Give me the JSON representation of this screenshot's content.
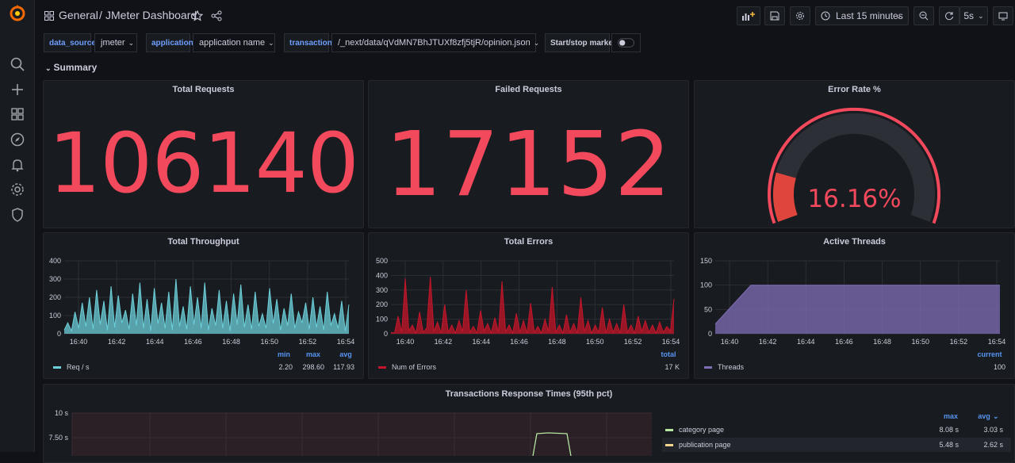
{
  "header": {
    "breadcrumb_root": "General",
    "separator": "/",
    "dashboard_title": "JMeter Dashboard",
    "time_range": "Last 15 minutes",
    "refresh_interval": "5s"
  },
  "variables": {
    "data_source": {
      "label": "data_source",
      "value": "jmeter"
    },
    "application": {
      "label": "application",
      "value": "application name"
    },
    "transaction": {
      "label": "transaction",
      "value": "/_next/data/qVdMN7BhJTUXf8zfj5tjR/opinion.json"
    },
    "marker": {
      "label": "Start/stop marker"
    }
  },
  "row": {
    "title": "Summary"
  },
  "panels": {
    "total_requests": {
      "title": "Total Requests",
      "value": "106140"
    },
    "failed_requests": {
      "title": "Failed Requests",
      "value": "17152"
    },
    "error_rate": {
      "title": "Error Rate %",
      "value": "16.16%",
      "fraction": 0.1616
    },
    "throughput": {
      "title": "Total Throughput",
      "legend_headers": [
        "min",
        "max",
        "avg"
      ],
      "series_name": "Req / s",
      "stats": [
        "2.20",
        "298.60",
        "117.93"
      ]
    },
    "errors": {
      "title": "Total Errors",
      "legend_headers": [
        "total"
      ],
      "series_name": "Num of Errors",
      "stats": [
        "17 K"
      ]
    },
    "threads": {
      "title": "Active Threads",
      "legend_headers": [
        "current"
      ],
      "series_name": "Threads",
      "stats": [
        "100"
      ]
    },
    "response_times": {
      "title": "Transactions Response Times (95th pct)",
      "legend_headers": [
        "max",
        "avg"
      ],
      "rows": [
        {
          "name": "category page",
          "max": "8.08 s",
          "avg": "3.03 s"
        },
        {
          "name": "publication page",
          "max": "5.48 s",
          "avg": "2.62 s"
        }
      ],
      "y_ticks": [
        "10 s",
        "7.50 s"
      ]
    }
  },
  "colors": {
    "red": "#f2495c",
    "teal": "#6ccfd9",
    "dark_red": "#c4162a",
    "purple": "#806eb7",
    "green": "#b5e5a0",
    "yellow": "#f7d48c",
    "link_blue": "#5794f2"
  },
  "chart_data": [
    {
      "type": "area",
      "title": "Total Throughput",
      "x_ticks": [
        "16:40",
        "16:42",
        "16:44",
        "16:46",
        "16:48",
        "16:50",
        "16:52",
        "16:54"
      ],
      "y_ticks": [
        0,
        100,
        200,
        300,
        400
      ],
      "ylim": [
        0,
        400
      ],
      "series": [
        {
          "name": "Req / s",
          "color": "#6ccfd9",
          "values": [
            20,
            60,
            15,
            120,
            30,
            170,
            40,
            200,
            25,
            240,
            50,
            180,
            20,
            260,
            35,
            210,
            60,
            130,
            25,
            220,
            45,
            280,
            30,
            190,
            15,
            250,
            55,
            170,
            30,
            230,
            20,
            300,
            40,
            150,
            25,
            260,
            50,
            200,
            30,
            280,
            20,
            140,
            45,
            240,
            30,
            180,
            15,
            220,
            50,
            270,
            35,
            160,
            25,
            230,
            40,
            110,
            30,
            250,
            55,
            190,
            20,
            140,
            45,
            220,
            30,
            120,
            60,
            170,
            25,
            200,
            35,
            150,
            20,
            230,
            45,
            110,
            30,
            180,
            15,
            160
          ]
        }
      ]
    },
    {
      "type": "area",
      "title": "Total Errors",
      "x_ticks": [
        "16:40",
        "16:42",
        "16:44",
        "16:46",
        "16:48",
        "16:50",
        "16:52",
        "16:54"
      ],
      "y_ticks": [
        0,
        100,
        200,
        300,
        400,
        500
      ],
      "ylim": [
        0,
        500
      ],
      "series": [
        {
          "name": "Num of Errors",
          "color": "#c4162a",
          "values": [
            10,
            5,
            120,
            10,
            380,
            20,
            60,
            5,
            150,
            10,
            40,
            390,
            15,
            80,
            5,
            200,
            10,
            60,
            5,
            90,
            15,
            300,
            10,
            50,
            5,
            160,
            20,
            70,
            5,
            110,
            10,
            360,
            15,
            60,
            5,
            140,
            10,
            90,
            5,
            210,
            10,
            50,
            5,
            100,
            15,
            320,
            10,
            60,
            5,
            130,
            10,
            70,
            5,
            250,
            15,
            90,
            5,
            60,
            10,
            180,
            5,
            100,
            10,
            70,
            5,
            200,
            10,
            60,
            5,
            120,
            15,
            90,
            10,
            60,
            5,
            80,
            10,
            50,
            20,
            240
          ]
        }
      ]
    },
    {
      "type": "area",
      "title": "Active Threads",
      "x_ticks": [
        "16:40",
        "16:42",
        "16:44",
        "16:46",
        "16:48",
        "16:50",
        "16:52",
        "16:54"
      ],
      "y_ticks": [
        0,
        50,
        100,
        150
      ],
      "ylim": [
        0,
        150
      ],
      "series": [
        {
          "name": "Threads",
          "color": "#806eb7",
          "values": [
            20,
            100,
            100,
            100,
            100,
            100,
            100,
            100,
            100
          ]
        }
      ]
    }
  ]
}
